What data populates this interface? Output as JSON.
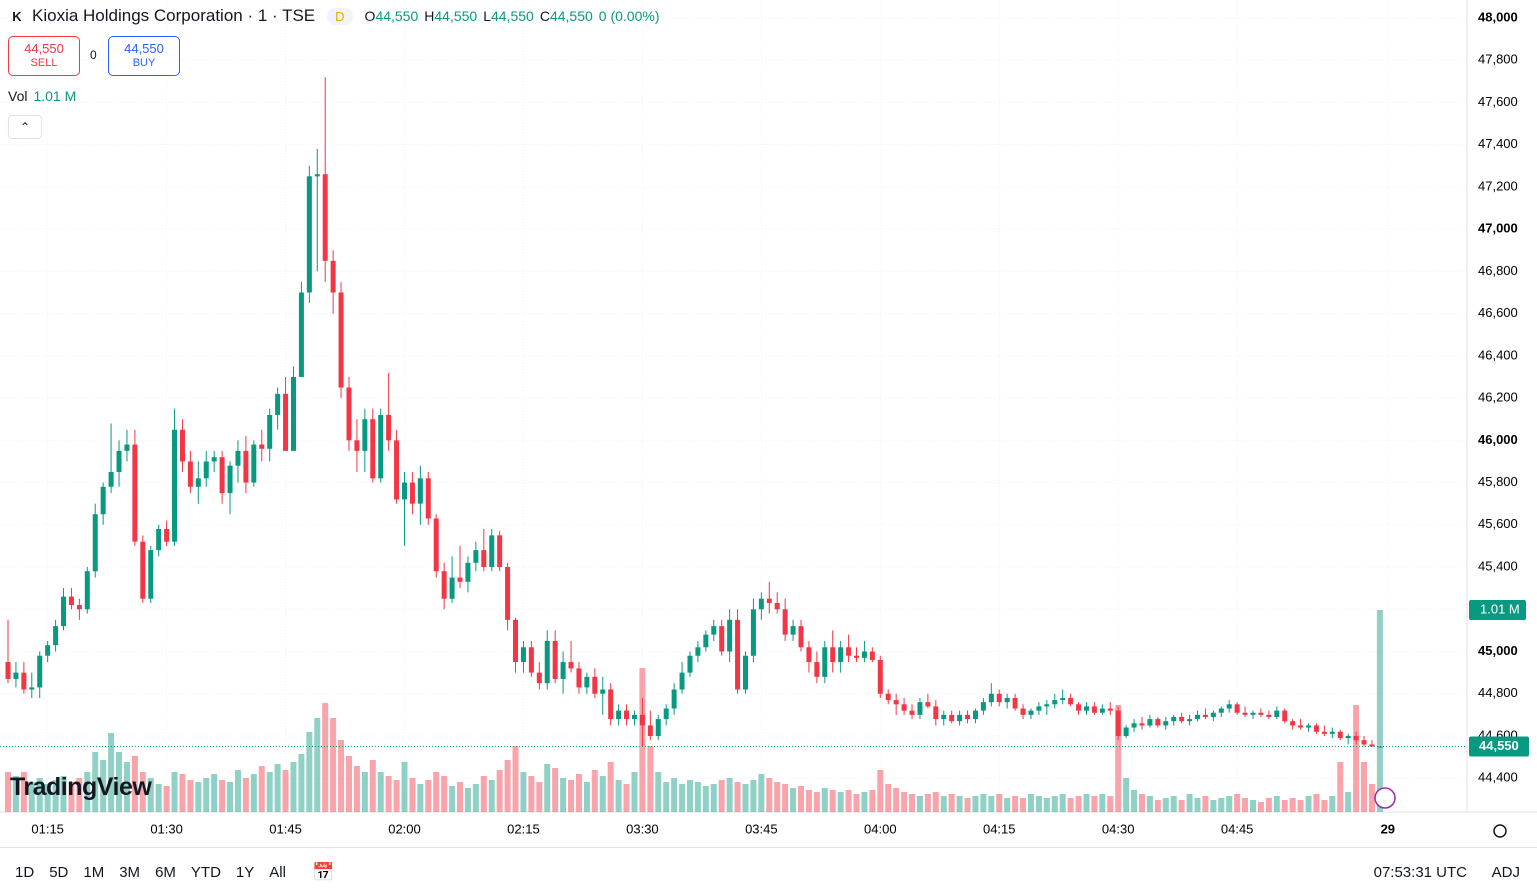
{
  "header": {
    "symbol": "Kioxia Holdings Corporation · 1 · TSE",
    "interval": "D",
    "ohlc": [
      {
        "key": "O",
        "value": "44,550"
      },
      {
        "key": "H",
        "value": "44,550"
      },
      {
        "key": "L",
        "value": "44,550"
      },
      {
        "key": "C",
        "value": "44,550"
      }
    ],
    "change": "0 (0.00%)"
  },
  "trade": {
    "sell_price": "44,550",
    "sell": "SELL",
    "spread": "0",
    "buy_price": "44,550",
    "buy": "BUY"
  },
  "legend": {
    "label": "Vol",
    "value": "1.01 M"
  },
  "logo": "TradingView",
  "toolbar": {
    "ranges": [
      "1D",
      "5D",
      "1M",
      "3M",
      "6M",
      "YTD",
      "1Y",
      "All"
    ],
    "clock": "07:53:31 UTC",
    "adj": "ADJ"
  },
  "chart_data": {
    "type": "candlestick",
    "up_color": "#089981",
    "down_color": "#f23645",
    "ylim": [
      44240,
      48085
    ],
    "yticks": [
      {
        "value": 44400,
        "label": "44,400"
      },
      {
        "value": 44600,
        "label": "44,600"
      },
      {
        "value": 44800,
        "label": "44,800"
      },
      {
        "value": 45000,
        "label": "45,000"
      },
      {
        "value": 45200,
        "label": "45,200"
      },
      {
        "value": 45400,
        "label": "45,400"
      },
      {
        "value": 45600,
        "label": "45,600"
      },
      {
        "value": 45800,
        "label": "45,800"
      },
      {
        "value": 46000,
        "label": "46,000"
      },
      {
        "value": 46200,
        "label": "46,200"
      },
      {
        "value": 46400,
        "label": "46,400"
      },
      {
        "value": 46600,
        "label": "46,600"
      },
      {
        "value": 46800,
        "label": "46,800"
      },
      {
        "value": 47000,
        "label": "47,000"
      },
      {
        "value": 47200,
        "label": "47,200"
      },
      {
        "value": 47400,
        "label": "47,400"
      },
      {
        "value": 47600,
        "label": "47,600"
      },
      {
        "value": 47800,
        "label": "47,800"
      },
      {
        "value": 48000,
        "label": "48,000"
      }
    ],
    "xticks": [
      {
        "value": 5,
        "label": "01:15"
      },
      {
        "value": 20,
        "label": "01:30"
      },
      {
        "value": 35,
        "label": "01:45"
      },
      {
        "value": 50,
        "label": "02:00"
      },
      {
        "value": 65,
        "label": "02:15"
      },
      {
        "value": 80,
        "label": "03:30"
      },
      {
        "value": 95,
        "label": "03:45"
      },
      {
        "value": 110,
        "label": "04:00"
      },
      {
        "value": 125,
        "label": "04:15"
      },
      {
        "value": 140,
        "label": "04:30"
      },
      {
        "value": 155,
        "label": "04:45"
      },
      {
        "value": 174,
        "label": "29"
      }
    ],
    "last_price_label": "44,550",
    "last_volume_label": "1.01 M",
    "grid": true,
    "candles": [
      [
        44950,
        45150,
        44850,
        44870
      ],
      [
        44870,
        44950,
        44830,
        44900
      ],
      [
        44900,
        44950,
        44800,
        44820
      ],
      [
        44820,
        44900,
        44780,
        44830
      ],
      [
        44830,
        45000,
        44780,
        44980
      ],
      [
        44980,
        45050,
        44950,
        45030
      ],
      [
        45030,
        45150,
        45000,
        45120
      ],
      [
        45120,
        45300,
        45100,
        45260
      ],
      [
        45260,
        45300,
        45200,
        45220
      ],
      [
        45220,
        45250,
        45150,
        45200
      ],
      [
        45200,
        45400,
        45180,
        45380
      ],
      [
        45380,
        45700,
        45350,
        45650
      ],
      [
        45650,
        45800,
        45600,
        45780
      ],
      [
        45780,
        46080,
        45750,
        45850
      ],
      [
        45850,
        46000,
        45780,
        45950
      ],
      [
        45950,
        46050,
        45900,
        45980
      ],
      [
        45980,
        46050,
        45500,
        45520
      ],
      [
        45520,
        45550,
        45230,
        45250
      ],
      [
        45250,
        45500,
        45230,
        45480
      ],
      [
        45480,
        45600,
        45450,
        45580
      ],
      [
        45580,
        45620,
        45500,
        45520
      ],
      [
        45520,
        46150,
        45500,
        46050
      ],
      [
        46050,
        46100,
        45850,
        45900
      ],
      [
        45900,
        45950,
        45750,
        45780
      ],
      [
        45780,
        45900,
        45700,
        45820
      ],
      [
        45820,
        45950,
        45780,
        45900
      ],
      [
        45900,
        45950,
        45850,
        45920
      ],
      [
        45920,
        45950,
        45700,
        45750
      ],
      [
        45750,
        45900,
        45650,
        45880
      ],
      [
        45880,
        46000,
        45800,
        45950
      ],
      [
        45950,
        46020,
        45750,
        45800
      ],
      [
        45800,
        46000,
        45780,
        45980
      ],
      [
        45980,
        46050,
        45900,
        45960
      ],
      [
        45960,
        46150,
        45900,
        46120
      ],
      [
        46120,
        46250,
        46050,
        46220
      ],
      [
        46220,
        46300,
        45950,
        45950
      ],
      [
        45950,
        46350,
        45950,
        46300
      ],
      [
        46300,
        46750,
        46300,
        46700
      ],
      [
        46700,
        47300,
        46650,
        47250
      ],
      [
        47250,
        47380,
        46800,
        47260
      ],
      [
        47260,
        47720,
        46750,
        46850
      ],
      [
        46850,
        46900,
        46600,
        46700
      ],
      [
        46700,
        46750,
        46200,
        46250
      ],
      [
        46250,
        46300,
        45950,
        46000
      ],
      [
        46000,
        46100,
        45850,
        45950
      ],
      [
        45950,
        46150,
        45850,
        46100
      ],
      [
        46100,
        46150,
        45800,
        45820
      ],
      [
        45820,
        46150,
        45800,
        46120
      ],
      [
        46120,
        46320,
        45950,
        46000
      ],
      [
        46000,
        46050,
        45700,
        45720
      ],
      [
        45720,
        45850,
        45500,
        45800
      ],
      [
        45800,
        45850,
        45650,
        45700
      ],
      [
        45700,
        45880,
        45600,
        45820
      ],
      [
        45820,
        45850,
        45600,
        45630
      ],
      [
        45630,
        45650,
        45350,
        45380
      ],
      [
        45380,
        45420,
        45200,
        45250
      ],
      [
        45250,
        45450,
        45230,
        45350
      ],
      [
        45350,
        45500,
        45300,
        45330
      ],
      [
        45330,
        45450,
        45280,
        45420
      ],
      [
        45420,
        45520,
        45380,
        45480
      ],
      [
        45480,
        45580,
        45380,
        45400
      ],
      [
        45400,
        45580,
        45380,
        45550
      ],
      [
        45550,
        45570,
        45380,
        45400
      ],
      [
        45400,
        45420,
        45100,
        45150
      ],
      [
        45150,
        45160,
        44900,
        44950
      ],
      [
        44950,
        45050,
        44900,
        45020
      ],
      [
        45020,
        45050,
        44880,
        44900
      ],
      [
        44900,
        44950,
        44820,
        44850
      ],
      [
        44850,
        45100,
        44820,
        45050
      ],
      [
        45050,
        45100,
        44850,
        44870
      ],
      [
        44870,
        45000,
        44800,
        44950
      ],
      [
        44950,
        45050,
        44900,
        44920
      ],
      [
        44920,
        44950,
        44800,
        44830
      ],
      [
        44830,
        44900,
        44800,
        44880
      ],
      [
        44880,
        44920,
        44780,
        44800
      ],
      [
        44800,
        44880,
        44700,
        44820
      ],
      [
        44820,
        44850,
        44650,
        44680
      ],
      [
        44680,
        44750,
        44650,
        44720
      ],
      [
        44720,
        44750,
        44650,
        44680
      ],
      [
        44680,
        44720,
        44650,
        44700
      ],
      [
        44700,
        44780,
        44550,
        44650
      ],
      [
        44650,
        44720,
        44580,
        44600
      ],
      [
        44600,
        44700,
        44580,
        44680
      ],
      [
        44680,
        44750,
        44650,
        44730
      ],
      [
        44730,
        44850,
        44700,
        44820
      ],
      [
        44820,
        44950,
        44800,
        44900
      ],
      [
        44900,
        45000,
        44880,
        44980
      ],
      [
        44980,
        45050,
        44950,
        45020
      ],
      [
        45020,
        45100,
        45000,
        45080
      ],
      [
        45080,
        45150,
        45050,
        45120
      ],
      [
        45120,
        45150,
        44980,
        45000
      ],
      [
        45000,
        45200,
        44950,
        45150
      ],
      [
        45150,
        45200,
        44800,
        44820
      ],
      [
        44820,
        45000,
        44800,
        44980
      ],
      [
        44980,
        45250,
        44950,
        45200
      ],
      [
        45200,
        45280,
        45150,
        45250
      ],
      [
        45250,
        45330,
        45180,
        45230
      ],
      [
        45230,
        45280,
        45180,
        45200
      ],
      [
        45200,
        45250,
        45050,
        45080
      ],
      [
        45080,
        45150,
        45050,
        45120
      ],
      [
        45120,
        45150,
        45000,
        45020
      ],
      [
        45020,
        45050,
        44900,
        44950
      ],
      [
        44950,
        45000,
        44850,
        44880
      ],
      [
        44880,
        45050,
        44850,
        45020
      ],
      [
        45020,
        45100,
        44900,
        44950
      ],
      [
        44950,
        45050,
        44900,
        45020
      ],
      [
        45020,
        45080,
        44950,
        44980
      ],
      [
        44980,
        45020,
        44950,
        44970
      ],
      [
        44970,
        45050,
        44950,
        45000
      ],
      [
        45000,
        45020,
        44950,
        44960
      ],
      [
        44960,
        44980,
        44780,
        44800
      ],
      [
        44800,
        44820,
        44750,
        44770
      ],
      [
        44770,
        44800,
        44700,
        44750
      ],
      [
        44750,
        44780,
        44700,
        44720
      ],
      [
        44720,
        44750,
        44680,
        44700
      ],
      [
        44700,
        44780,
        44680,
        44760
      ],
      [
        44760,
        44800,
        44730,
        44740
      ],
      [
        44740,
        44770,
        44650,
        44680
      ],
      [
        44680,
        44720,
        44650,
        44700
      ],
      [
        44700,
        44720,
        44660,
        44670
      ],
      [
        44670,
        44720,
        44650,
        44700
      ],
      [
        44700,
        44720,
        44660,
        44680
      ],
      [
        44680,
        44730,
        44660,
        44720
      ],
      [
        44720,
        44780,
        44700,
        44760
      ],
      [
        44760,
        44850,
        44740,
        44800
      ],
      [
        44800,
        44820,
        44740,
        44760
      ],
      [
        44760,
        44800,
        44730,
        44780
      ],
      [
        44780,
        44800,
        44720,
        44730
      ],
      [
        44730,
        44750,
        44680,
        44700
      ],
      [
        44700,
        44730,
        44680,
        44720
      ],
      [
        44720,
        44760,
        44700,
        44740
      ],
      [
        44740,
        44770,
        44700,
        44750
      ],
      [
        44750,
        44800,
        44730,
        44770
      ],
      [
        44770,
        44820,
        44750,
        44780
      ],
      [
        44780,
        44800,
        44740,
        44750
      ],
      [
        44750,
        44760,
        44700,
        44720
      ],
      [
        44720,
        44760,
        44700,
        44740
      ],
      [
        44740,
        44760,
        44700,
        44710
      ],
      [
        44710,
        44750,
        44700,
        44730
      ],
      [
        44730,
        44760,
        44700,
        44720
      ],
      [
        44720,
        44740,
        44580,
        44600
      ],
      [
        44600,
        44650,
        44590,
        44640
      ],
      [
        44640,
        44680,
        44620,
        44660
      ],
      [
        44660,
        44690,
        44630,
        44650
      ],
      [
        44650,
        44700,
        44640,
        44680
      ],
      [
        44680,
        44690,
        44640,
        44650
      ],
      [
        44650,
        44690,
        44630,
        44670
      ],
      [
        44670,
        44700,
        44650,
        44690
      ],
      [
        44690,
        44710,
        44660,
        44670
      ],
      [
        44670,
        44700,
        44650,
        44680
      ],
      [
        44680,
        44720,
        44670,
        44700
      ],
      [
        44700,
        44730,
        44680,
        44690
      ],
      [
        44690,
        44720,
        44670,
        44710
      ],
      [
        44710,
        44740,
        44690,
        44730
      ],
      [
        44730,
        44770,
        44710,
        44750
      ],
      [
        44750,
        44760,
        44700,
        44710
      ],
      [
        44710,
        44740,
        44690,
        44700
      ],
      [
        44700,
        44720,
        44680,
        44710
      ],
      [
        44710,
        44730,
        44690,
        44700
      ],
      [
        44700,
        44720,
        44680,
        44690
      ],
      [
        44690,
        44740,
        44680,
        44720
      ],
      [
        44720,
        44730,
        44660,
        44670
      ],
      [
        44670,
        44680,
        44630,
        44650
      ],
      [
        44650,
        44680,
        44630,
        44640
      ],
      [
        44640,
        44660,
        44620,
        44650
      ],
      [
        44650,
        44660,
        44610,
        44620
      ],
      [
        44620,
        44650,
        44600,
        44610
      ],
      [
        44610,
        44640,
        44590,
        44620
      ],
      [
        44620,
        44630,
        44580,
        44590
      ],
      [
        44590,
        44610,
        44560,
        44600
      ],
      [
        44600,
        44620,
        44560,
        44580
      ],
      [
        44580,
        44600,
        44550,
        44560
      ],
      [
        44560,
        44580,
        44550,
        44550
      ],
      [
        44550,
        44550,
        44550,
        44550
      ]
    ],
    "volume": [
      200000,
      180000,
      200000,
      150000,
      170000,
      140000,
      160000,
      180000,
      150000,
      170000,
      200000,
      300000,
      260000,
      395000,
      300000,
      250000,
      280000,
      200000,
      170000,
      140000,
      130000,
      200000,
      190000,
      160000,
      150000,
      170000,
      190000,
      160000,
      150000,
      210000,
      170000,
      190000,
      230000,
      200000,
      240000,
      210000,
      250000,
      290000,
      400000,
      470000,
      545000,
      470000,
      360000,
      280000,
      230000,
      200000,
      260000,
      200000,
      180000,
      160000,
      250000,
      170000,
      140000,
      160000,
      200000,
      180000,
      130000,
      150000,
      120000,
      140000,
      180000,
      160000,
      210000,
      260000,
      330000,
      200000,
      180000,
      150000,
      240000,
      220000,
      170000,
      160000,
      190000,
      150000,
      210000,
      180000,
      250000,
      160000,
      140000,
      200000,
      720000,
      330000,
      200000,
      150000,
      170000,
      140000,
      160000,
      150000,
      130000,
      140000,
      160000,
      170000,
      150000,
      140000,
      160000,
      190000,
      170000,
      150000,
      140000,
      120000,
      130000,
      110000,
      100000,
      120000,
      110000,
      100000,
      110000,
      90000,
      100000,
      110000,
      210000,
      140000,
      120000,
      100000,
      90000,
      80000,
      90000,
      100000,
      80000,
      90000,
      80000,
      70000,
      80000,
      90000,
      80000,
      90000,
      70000,
      80000,
      70000,
      90000,
      80000,
      70000,
      80000,
      90000,
      70000,
      80000,
      90000,
      80000,
      90000,
      80000,
      535000,
      170000,
      110000,
      90000,
      80000,
      60000,
      70000,
      80000,
      60000,
      90000,
      70000,
      80000,
      60000,
      70000,
      80000,
      90000,
      70000,
      60000,
      50000,
      70000,
      80000,
      60000,
      70000,
      60000,
      80000,
      90000,
      60000,
      80000,
      250000,
      100000,
      535000,
      250000,
      140000,
      1010000
    ]
  }
}
